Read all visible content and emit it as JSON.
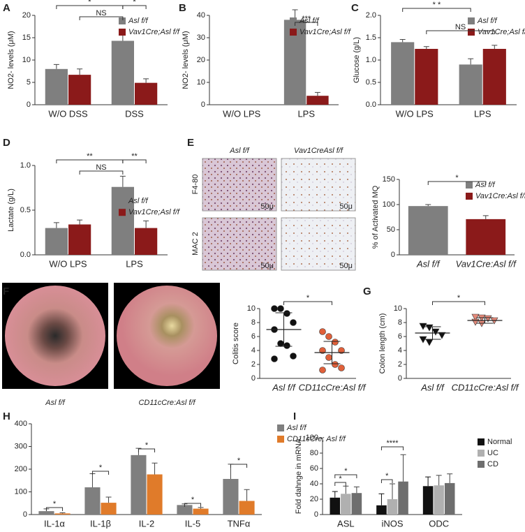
{
  "chart_data": [
    {
      "type": "bar",
      "panel": "A",
      "ylabel": "NO2- levels (μM)",
      "categories": [
        "W/O DSS",
        "DSS"
      ],
      "ylim": [
        0,
        20
      ],
      "yticks": [
        0,
        5,
        10,
        15,
        20
      ],
      "legend": "upper right",
      "series": [
        {
          "name": "Asl f/f",
          "color": "#7f7f7f",
          "values": [
            8,
            14.3
          ],
          "errors": [
            1,
            2.3
          ]
        },
        {
          "name": "Vav1Cre;Asl f/f",
          "color": "#8b1a1a",
          "values": [
            6.7,
            4.9
          ],
          "errors": [
            1.3,
            0.9
          ]
        }
      ],
      "annotations": [
        "*",
        "NS",
        "*"
      ]
    },
    {
      "type": "bar",
      "panel": "B",
      "ylabel": "NO2- levels (μM)",
      "categories": [
        "W/O LPS",
        "LPS"
      ],
      "ylim": [
        0,
        40
      ],
      "yticks": [
        0,
        10,
        20,
        30,
        40
      ],
      "legend": "upper right",
      "series": [
        {
          "name": "Asl f/f",
          "color": "#7f7f7f",
          "values": [
            0,
            38
          ],
          "errors": [
            0,
            4.5
          ]
        },
        {
          "name": "Vav1Cre;Asl f/f",
          "color": "#8b1a1a",
          "values": [
            0,
            4
          ],
          "errors": [
            0,
            1.5
          ]
        }
      ],
      "annotations": [
        "***"
      ]
    },
    {
      "type": "bar",
      "panel": "C",
      "ylabel": "Glucose (g/L)",
      "categories": [
        "W/O LPS",
        "LPS"
      ],
      "ylim": [
        0,
        2
      ],
      "yticks": [
        {
          "value": 0,
          "label": "0.0"
        },
        {
          "value": 0.5,
          "label": "0.5"
        },
        {
          "value": 1,
          "label": "1.0"
        },
        {
          "value": 1.5,
          "label": "1.5"
        },
        {
          "value": 2,
          "label": "2.0"
        }
      ],
      "legend": "upper right",
      "series": [
        {
          "name": "Asl f/f",
          "color": "#7f7f7f",
          "values": [
            1.4,
            0.9
          ],
          "errors": [
            0.06,
            0.13
          ]
        },
        {
          "name": "Vav1Cre;Asl f/f",
          "color": "#8b1a1a",
          "values": [
            1.25,
            1.25
          ],
          "errors": [
            0.05,
            0.08
          ]
        }
      ],
      "annotations": [
        "* *",
        "NS"
      ]
    },
    {
      "type": "bar",
      "panel": "D",
      "ylabel": "Lactate  (g/L)",
      "categories": [
        "W/O LPS",
        "LPS"
      ],
      "ylim": [
        0,
        1
      ],
      "yticks": [
        {
          "value": 0,
          "label": "0.0"
        },
        {
          "value": 0.5,
          "label": "0.5"
        },
        {
          "value": 1,
          "label": "1.0"
        }
      ],
      "legend": "center right",
      "series": [
        {
          "name": "Asl f/f",
          "color": "#7f7f7f",
          "values": [
            0.3,
            0.76
          ],
          "errors": [
            0.06,
            0.12
          ]
        },
        {
          "name": "Vav1Cre;Asl f/f",
          "color": "#8b1a1a",
          "values": [
            0.34,
            0.3
          ],
          "errors": [
            0.05,
            0.08
          ]
        }
      ],
      "annotations": [
        "**",
        "NS",
        "**"
      ]
    },
    {
      "type": "bar",
      "panel": "E",
      "ylabel": "% of Activated MQ",
      "categories": [
        "Asl f/f",
        "Vav1Cre:Asl f/f"
      ],
      "ylim": [
        0,
        150
      ],
      "yticks": [
        0,
        50,
        100,
        150
      ],
      "legend": "upper right",
      "series": [
        {
          "name": "Asl f/f",
          "color": "#7f7f7f",
          "values": [
            97,
            null
          ],
          "errors": [
            3,
            null
          ]
        },
        {
          "name": "Vav1Cre:Asl f/f",
          "color": "#8b1a1a",
          "values": [
            null,
            71
          ],
          "errors": [
            null,
            7
          ]
        }
      ],
      "annotations": [
        "*"
      ]
    },
    {
      "type": "strip",
      "panel": "F",
      "ylabel": "Colitis  score",
      "categories": [
        "Asl f/f",
        "CD11cCre:Asl f/f"
      ],
      "ylim": [
        0,
        10
      ],
      "yticks": [
        0,
        2,
        4,
        6,
        8,
        10
      ],
      "groups": [
        {
          "color": "#111111",
          "marker": "circle",
          "values": [
            10,
            10,
            9.3,
            8,
            7,
            5,
            4.7,
            3.2,
            2.8
          ],
          "mean": 7,
          "sd": 2.4
        },
        {
          "color": "#e0603a",
          "marker": "circle",
          "values": [
            6.7,
            6,
            5.2,
            4,
            4,
            3,
            2,
            1.5,
            1.2
          ],
          "mean": 3.7,
          "sd": 1.6
        }
      ],
      "annotations": [
        "*"
      ]
    },
    {
      "type": "strip",
      "panel": "G",
      "ylabel": "Colon length (cm)",
      "categories": [
        "Asl f/f",
        "CD11cCre:Asl f/f"
      ],
      "ylim": [
        0,
        10
      ],
      "yticks": [
        0,
        2,
        4,
        6,
        8,
        10
      ],
      "groups": [
        {
          "color": "#111111",
          "marker": "triangle-down",
          "values": [
            7.5,
            7.3,
            6.7,
            6.2,
            5.6,
            5.2
          ],
          "mean": 6.5,
          "sd": 0.9
        },
        {
          "color": "#e58a7a",
          "marker": "triangle-down",
          "values": [
            8.8,
            8.7,
            8.6,
            8.3,
            8.1,
            7.9
          ],
          "mean": 8.3,
          "sd": 0.4
        }
      ],
      "annotations": [
        "*"
      ]
    },
    {
      "type": "bar",
      "panel": "H",
      "categories": [
        "IL-1α",
        "IL-1β",
        "IL-2",
        "IL-5",
        "TNFα"
      ],
      "ylim": [
        0,
        400
      ],
      "yticks": [
        0,
        100,
        200,
        300,
        400
      ],
      "legend": "outside right",
      "series": [
        {
          "name": "Asl f/f",
          "color": "#7f7f7f",
          "values": [
            15,
            120,
            262,
            42,
            157
          ],
          "errors": [
            10,
            60,
            30,
            5,
            65
          ]
        },
        {
          "name": "CD11cCre; Asl f/f",
          "color": "#e07b2a",
          "values": [
            5,
            52,
            177,
            26,
            60
          ],
          "errors": [
            3,
            25,
            50,
            5,
            50
          ]
        }
      ],
      "annotations": [
        "*",
        "*",
        "*",
        "*",
        "*"
      ]
    },
    {
      "type": "bar",
      "panel": "I",
      "ylabel": "Fold dahnge in mRNA",
      "categories": [
        "ASL",
        "iNOS",
        "ODC"
      ],
      "ylim": [
        0,
        100
      ],
      "yticks": [
        0,
        20,
        40,
        60,
        80,
        100
      ],
      "legend": "outside right",
      "series": [
        {
          "name": "Normal",
          "color": "#111111",
          "values": [
            22,
            12,
            37
          ],
          "errors": [
            8,
            15,
            12
          ]
        },
        {
          "name": "UC",
          "color": "#b0b0b0",
          "values": [
            27,
            20,
            38
          ],
          "errors": [
            10,
            20,
            13
          ]
        },
        {
          "name": "CD",
          "color": "#6e6e6e",
          "values": [
            28,
            43,
            41
          ],
          "errors": [
            8,
            35,
            12
          ]
        }
      ],
      "annotations": [
        "*",
        "*",
        "*",
        "****"
      ]
    }
  ],
  "images": {
    "E": {
      "column_labels": [
        "Asl f/f",
        "Vav1CreAsl f/f"
      ],
      "row_labels": [
        "F4-80",
        "MAC 2"
      ],
      "scale_labels": [
        "50μ",
        "50μ",
        "50μ",
        "50μ"
      ]
    },
    "F": {
      "image_labels": [
        "Asl f/f",
        "CD11cCre:Asl f/f"
      ]
    }
  }
}
